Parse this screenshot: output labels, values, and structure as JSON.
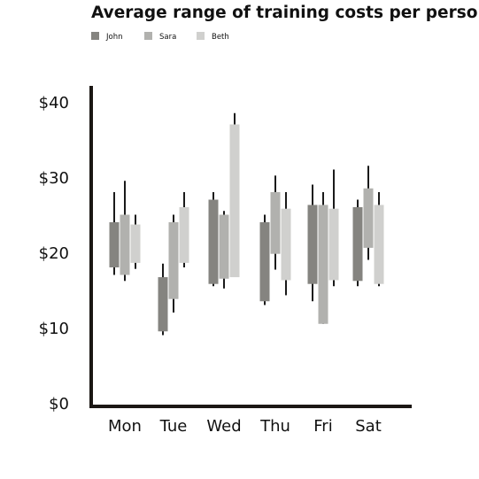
{
  "chart_data": {
    "type": "candlestick",
    "title": "Average range of training costs per person",
    "categories": [
      "Mon",
      "Tue",
      "Wed",
      "Thu",
      "Fri",
      "Sat"
    ],
    "ylim": [
      0,
      42
    ],
    "yticks": [
      {
        "value": 0,
        "label": "$0"
      },
      {
        "value": 10,
        "label": "$10"
      },
      {
        "value": 20,
        "label": "$20"
      },
      {
        "value": 30,
        "label": "$30"
      },
      {
        "value": 40,
        "label": "$40"
      }
    ],
    "grid": false,
    "legend_position": "top-left",
    "series": [
      {
        "name": "John",
        "color": "#858480",
        "points": [
          {
            "low": 17.0,
            "box_low": 18.0,
            "box_high": 24.0,
            "high": 28.0
          },
          {
            "low": 9.0,
            "box_low": 9.5,
            "box_high": 16.7,
            "high": 18.5
          },
          {
            "low": 15.5,
            "box_low": 15.8,
            "box_high": 27.0,
            "high": 28.0
          },
          {
            "low": 13.0,
            "box_low": 13.5,
            "box_high": 24.0,
            "high": 25.0
          },
          {
            "low": 13.5,
            "box_low": 15.8,
            "box_high": 26.3,
            "high": 29.0
          },
          {
            "low": 15.5,
            "box_low": 16.2,
            "box_high": 26.0,
            "high": 27.0
          }
        ]
      },
      {
        "name": "Sara",
        "color": "#b1b1ae",
        "points": [
          {
            "low": 16.2,
            "box_low": 17.0,
            "box_high": 25.0,
            "high": 29.5
          },
          {
            "low": 12.0,
            "box_low": 13.8,
            "box_high": 24.0,
            "high": 25.0
          },
          {
            "low": 15.2,
            "box_low": 16.5,
            "box_high": 25.0,
            "high": 25.5
          },
          {
            "low": 17.7,
            "box_low": 19.8,
            "box_high": 28.0,
            "high": 30.2
          },
          {
            "low": 10.5,
            "box_low": 10.5,
            "box_high": 26.3,
            "high": 28.0
          },
          {
            "low": 19.0,
            "box_low": 20.6,
            "box_high": 28.5,
            "high": 31.5
          }
        ]
      },
      {
        "name": "Beth",
        "color": "#d0d0ce",
        "points": [
          {
            "low": 17.8,
            "box_low": 18.6,
            "box_high": 23.7,
            "high": 25.0
          },
          {
            "low": 18.0,
            "box_low": 18.6,
            "box_high": 26.0,
            "high": 28.0
          },
          {
            "low": 16.7,
            "box_low": 16.7,
            "box_high": 37.0,
            "high": 38.5
          },
          {
            "low": 14.3,
            "box_low": 16.3,
            "box_high": 25.8,
            "high": 28.0
          },
          {
            "low": 15.5,
            "box_low": 16.3,
            "box_high": 25.8,
            "high": 31.0
          },
          {
            "low": 15.5,
            "box_low": 15.8,
            "box_high": 26.3,
            "high": 28.0
          }
        ]
      }
    ],
    "whisker_color": "#1a1a1a",
    "axis_color": "#1b1714"
  }
}
